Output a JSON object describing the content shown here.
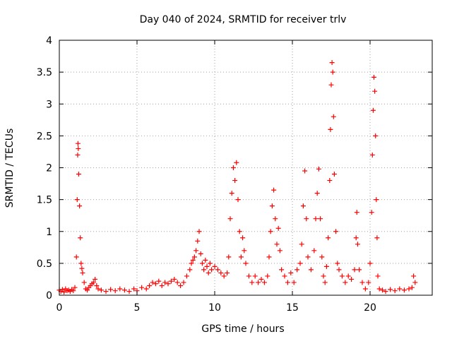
{
  "chart_data": {
    "type": "scatter",
    "title": "Day 040 of 2024, SRMTID for receiver trlv",
    "xlabel": "GPS time / hours",
    "ylabel": "SRMTID / TECUs",
    "xlim": [
      0,
      24
    ],
    "ylim": [
      0,
      4
    ],
    "xticks": [
      0,
      5,
      10,
      15,
      20
    ],
    "yticks": [
      0,
      0.5,
      1,
      1.5,
      2,
      2.5,
      3,
      3.5,
      4
    ],
    "xtick_labels": [
      "0",
      "5",
      "10",
      "15",
      "20"
    ],
    "ytick_labels": [
      "0",
      "0.5",
      "1",
      "1.5",
      "2",
      "2.5",
      "3",
      "3.5",
      "4"
    ],
    "grid": true,
    "marker": "+",
    "series": [
      {
        "name": "SRMTID",
        "color": "#ff0000",
        "points": [
          [
            0.0,
            0.08
          ],
          [
            0.1,
            0.06
          ],
          [
            0.2,
            0.09
          ],
          [
            0.3,
            0.05
          ],
          [
            0.4,
            0.1
          ],
          [
            0.5,
            0.07
          ],
          [
            0.6,
            0.08
          ],
          [
            0.7,
            0.06
          ],
          [
            0.8,
            0.09
          ],
          [
            0.9,
            0.07
          ],
          [
            1.0,
            0.12
          ],
          [
            1.1,
            0.6
          ],
          [
            1.15,
            1.5
          ],
          [
            1.18,
            2.2
          ],
          [
            1.2,
            2.38
          ],
          [
            1.22,
            2.3
          ],
          [
            1.25,
            1.9
          ],
          [
            1.3,
            1.4
          ],
          [
            1.35,
            0.9
          ],
          [
            1.4,
            0.5
          ],
          [
            1.45,
            0.42
          ],
          [
            1.5,
            0.35
          ],
          [
            1.6,
            0.2
          ],
          [
            1.7,
            0.1
          ],
          [
            1.8,
            0.08
          ],
          [
            1.9,
            0.12
          ],
          [
            2.0,
            0.15
          ],
          [
            2.1,
            0.18
          ],
          [
            2.2,
            0.2
          ],
          [
            2.3,
            0.25
          ],
          [
            2.4,
            0.15
          ],
          [
            2.5,
            0.1
          ],
          [
            2.7,
            0.08
          ],
          [
            3.0,
            0.06
          ],
          [
            3.3,
            0.09
          ],
          [
            3.6,
            0.07
          ],
          [
            3.9,
            0.1
          ],
          [
            4.2,
            0.08
          ],
          [
            4.5,
            0.06
          ],
          [
            4.8,
            0.1
          ],
          [
            5.0,
            0.07
          ],
          [
            5.3,
            0.12
          ],
          [
            5.6,
            0.1
          ],
          [
            5.8,
            0.15
          ],
          [
            6.0,
            0.2
          ],
          [
            6.2,
            0.18
          ],
          [
            6.4,
            0.22
          ],
          [
            6.6,
            0.15
          ],
          [
            6.8,
            0.2
          ],
          [
            7.0,
            0.18
          ],
          [
            7.2,
            0.22
          ],
          [
            7.4,
            0.25
          ],
          [
            7.6,
            0.2
          ],
          [
            7.8,
            0.15
          ],
          [
            8.0,
            0.2
          ],
          [
            8.2,
            0.3
          ],
          [
            8.4,
            0.4
          ],
          [
            8.5,
            0.5
          ],
          [
            8.6,
            0.55
          ],
          [
            8.7,
            0.6
          ],
          [
            8.8,
            0.7
          ],
          [
            8.9,
            0.85
          ],
          [
            9.0,
            1.0
          ],
          [
            9.1,
            0.65
          ],
          [
            9.2,
            0.5
          ],
          [
            9.3,
            0.4
          ],
          [
            9.4,
            0.55
          ],
          [
            9.5,
            0.45
          ],
          [
            9.6,
            0.35
          ],
          [
            9.7,
            0.5
          ],
          [
            9.8,
            0.4
          ],
          [
            10.0,
            0.45
          ],
          [
            10.2,
            0.4
          ],
          [
            10.4,
            0.35
          ],
          [
            10.6,
            0.3
          ],
          [
            10.8,
            0.35
          ],
          [
            10.9,
            0.6
          ],
          [
            11.0,
            1.2
          ],
          [
            11.1,
            1.6
          ],
          [
            11.2,
            2.0
          ],
          [
            11.3,
            1.8
          ],
          [
            11.4,
            2.08
          ],
          [
            11.5,
            1.5
          ],
          [
            11.6,
            1.0
          ],
          [
            11.7,
            0.6
          ],
          [
            11.8,
            0.9
          ],
          [
            11.9,
            0.7
          ],
          [
            12.0,
            0.5
          ],
          [
            12.2,
            0.3
          ],
          [
            12.4,
            0.2
          ],
          [
            12.6,
            0.3
          ],
          [
            12.8,
            0.2
          ],
          [
            13.0,
            0.25
          ],
          [
            13.2,
            0.2
          ],
          [
            13.4,
            0.3
          ],
          [
            13.5,
            0.6
          ],
          [
            13.6,
            1.0
          ],
          [
            13.7,
            1.4
          ],
          [
            13.8,
            1.65
          ],
          [
            13.9,
            1.2
          ],
          [
            14.0,
            0.8
          ],
          [
            14.1,
            1.05
          ],
          [
            14.2,
            0.7
          ],
          [
            14.3,
            0.4
          ],
          [
            14.5,
            0.3
          ],
          [
            14.7,
            0.2
          ],
          [
            14.9,
            0.35
          ],
          [
            15.1,
            0.2
          ],
          [
            15.3,
            0.4
          ],
          [
            15.5,
            0.5
          ],
          [
            15.6,
            0.8
          ],
          [
            15.7,
            1.4
          ],
          [
            15.8,
            1.95
          ],
          [
            15.9,
            1.2
          ],
          [
            16.0,
            0.6
          ],
          [
            16.2,
            0.4
          ],
          [
            16.4,
            0.7
          ],
          [
            16.5,
            1.2
          ],
          [
            16.6,
            1.6
          ],
          [
            16.7,
            1.98
          ],
          [
            16.8,
            1.2
          ],
          [
            16.9,
            0.6
          ],
          [
            17.0,
            0.3
          ],
          [
            17.1,
            0.2
          ],
          [
            17.2,
            0.45
          ],
          [
            17.3,
            0.9
          ],
          [
            17.4,
            1.8
          ],
          [
            17.45,
            2.6
          ],
          [
            17.5,
            3.3
          ],
          [
            17.55,
            3.65
          ],
          [
            17.6,
            3.5
          ],
          [
            17.65,
            2.8
          ],
          [
            17.7,
            1.9
          ],
          [
            17.8,
            1.0
          ],
          [
            17.9,
            0.5
          ],
          [
            18.0,
            0.4
          ],
          [
            18.2,
            0.3
          ],
          [
            18.4,
            0.2
          ],
          [
            18.6,
            0.3
          ],
          [
            18.8,
            0.25
          ],
          [
            19.0,
            0.4
          ],
          [
            19.1,
            0.9
          ],
          [
            19.15,
            1.3
          ],
          [
            19.2,
            0.8
          ],
          [
            19.3,
            0.4
          ],
          [
            19.5,
            0.2
          ],
          [
            19.7,
            0.1
          ],
          [
            19.9,
            0.2
          ],
          [
            20.0,
            0.5
          ],
          [
            20.1,
            1.3
          ],
          [
            20.15,
            2.2
          ],
          [
            20.2,
            2.9
          ],
          [
            20.25,
            3.42
          ],
          [
            20.3,
            3.2
          ],
          [
            20.35,
            2.5
          ],
          [
            20.4,
            1.5
          ],
          [
            20.45,
            0.9
          ],
          [
            20.5,
            0.3
          ],
          [
            20.6,
            0.1
          ],
          [
            20.8,
            0.08
          ],
          [
            21.0,
            0.06
          ],
          [
            21.3,
            0.09
          ],
          [
            21.6,
            0.07
          ],
          [
            21.9,
            0.1
          ],
          [
            22.2,
            0.08
          ],
          [
            22.5,
            0.1
          ],
          [
            22.7,
            0.12
          ],
          [
            22.8,
            0.3
          ],
          [
            22.9,
            0.2
          ]
        ]
      }
    ]
  }
}
